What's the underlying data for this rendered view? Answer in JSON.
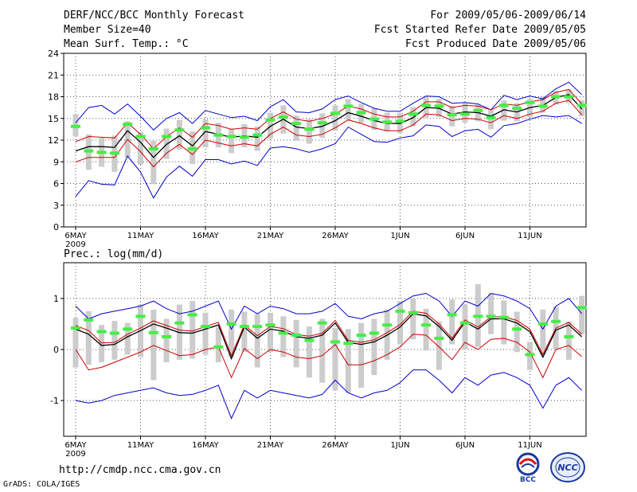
{
  "header": {
    "title": "DERF/NCC/BCC Monthly Forecast",
    "member_size": "Member Size=40",
    "variable": "Mean Surf. Temp.: °C",
    "period": "For 2009/05/06-2009/06/14",
    "refer_date": "Fcst Started Refer Date 2009/05/05",
    "produced_date": "Fcst Produced Date 2009/05/06"
  },
  "footer": {
    "url": "http://cmdp.ncc.cma.gov.cn",
    "grads": "GrADS: COLA/IGES",
    "logo_bcc_text": "BCC",
    "logo_ncc_text": "NCC"
  },
  "colors": {
    "mean": "#000000",
    "inner": "#cc0000",
    "outer": "#0000cc",
    "obs": "#44ee44",
    "box": "#cccccc",
    "grid": "#555555"
  },
  "chart_data": [
    {
      "type": "line",
      "title": "Mean Surf. Temp.: °C",
      "x_ticks": [
        "6MAY",
        "11MAY",
        "16MAY",
        "21MAY",
        "26MAY",
        "1JUN",
        "6JUN",
        "11JUN"
      ],
      "x_year": "2009",
      "ylim": [
        0,
        24
      ],
      "y_ticks": [
        0,
        3,
        6,
        9,
        12,
        15,
        18,
        21,
        24
      ],
      "days": 40,
      "series": [
        {
          "name": "ensemble-mean",
          "values": [
            10.5,
            11.1,
            11.1,
            11.0,
            13.3,
            11.7,
            9.6,
            11.4,
            12.6,
            11.2,
            13.2,
            12.8,
            12.4,
            12.6,
            12.4,
            13.9,
            14.9,
            13.8,
            13.6,
            13.9,
            14.7,
            15.8,
            15.3,
            14.7,
            14.3,
            14.3,
            15.1,
            16.5,
            16.4,
            15.6,
            15.9,
            15.8,
            15.3,
            16.2,
            15.9,
            16.5,
            16.8,
            17.9,
            18.3,
            16.3
          ]
        },
        {
          "name": "upper-inner",
          "values": [
            11.8,
            12.5,
            12.4,
            12.3,
            14.4,
            12.8,
            10.8,
            12.5,
            13.7,
            12.4,
            14.3,
            14.0,
            13.5,
            13.7,
            13.5,
            15.0,
            15.9,
            14.9,
            14.6,
            15.0,
            15.6,
            16.7,
            16.3,
            15.6,
            15.2,
            15.2,
            16.0,
            17.3,
            17.3,
            16.5,
            16.8,
            16.7,
            16.2,
            17.0,
            16.8,
            17.3,
            17.6,
            18.6,
            19.0,
            17.0
          ]
        },
        {
          "name": "lower-inner",
          "values": [
            9.0,
            9.6,
            9.6,
            9.6,
            12.1,
            10.4,
            8.3,
            10.2,
            11.4,
            10.0,
            12.0,
            11.6,
            11.2,
            11.5,
            11.2,
            12.8,
            13.8,
            12.7,
            12.5,
            12.8,
            13.7,
            14.8,
            14.3,
            13.7,
            13.3,
            13.3,
            14.1,
            15.6,
            15.5,
            14.7,
            15.0,
            14.9,
            14.4,
            15.4,
            15.0,
            15.6,
            16.0,
            17.1,
            17.5,
            15.5
          ]
        },
        {
          "name": "upper-outer",
          "values": [
            14.4,
            16.5,
            16.8,
            15.6,
            17.0,
            15.3,
            13.4,
            15.0,
            15.8,
            14.3,
            16.1,
            15.6,
            15.1,
            15.3,
            14.7,
            16.6,
            17.6,
            15.9,
            15.8,
            16.3,
            17.6,
            18.1,
            17.2,
            16.4,
            16.0,
            16.0,
            17.1,
            18.1,
            18.0,
            17.1,
            17.2,
            17.0,
            16.2,
            18.2,
            17.6,
            18.1,
            17.7,
            19.1,
            20.0,
            18.3
          ]
        },
        {
          "name": "lower-outer",
          "values": [
            4.2,
            6.4,
            5.9,
            5.8,
            9.8,
            7.6,
            4.0,
            6.9,
            8.4,
            7.0,
            9.3,
            9.3,
            8.7,
            9.1,
            8.5,
            10.9,
            11.1,
            10.8,
            10.3,
            10.8,
            11.5,
            13.8,
            12.8,
            11.8,
            11.7,
            12.3,
            12.6,
            14.1,
            13.9,
            12.5,
            13.3,
            13.5,
            12.4,
            14.0,
            14.3,
            14.9,
            15.4,
            15.2,
            15.4,
            14.3
          ]
        },
        {
          "name": "obs-marker",
          "values": [
            13.9,
            10.5,
            10.3,
            10.2,
            14.2,
            12.5,
            10.8,
            12.5,
            13.4,
            10.8,
            13.7,
            12.7,
            12.5,
            12.4,
            12.7,
            14.8,
            15.2,
            14.3,
            13.5,
            14.4,
            15.7,
            16.7,
            15.8,
            14.9,
            14.5,
            14.6,
            15.6,
            16.8,
            16.7,
            15.5,
            15.6,
            16.1,
            15.1,
            16.8,
            16.4,
            17.2,
            16.7,
            18.0,
            18.0,
            16.8
          ]
        },
        {
          "name": "box-top",
          "values": [
            15.6,
            12.8,
            12.3,
            12.6,
            14.6,
            13.1,
            11.9,
            13.6,
            14.8,
            13.2,
            14.9,
            14.4,
            13.6,
            14.2,
            13.9,
            15.8,
            16.8,
            15.4,
            14.9,
            15.7,
            16.8,
            17.7,
            17.0,
            16.4,
            15.8,
            15.8,
            16.6,
            18.0,
            17.7,
            16.7,
            17.1,
            16.9,
            16.2,
            17.5,
            17.1,
            17.7,
            18.1,
            18.8,
            19.0,
            17.5
          ]
        },
        {
          "name": "box-bottom",
          "values": [
            12.5,
            7.9,
            8.3,
            7.6,
            9.6,
            8.6,
            5.9,
            9.4,
            10.7,
            8.7,
            11.0,
            11.0,
            10.2,
            11.0,
            10.5,
            12.2,
            12.9,
            11.9,
            11.5,
            12.3,
            13.3,
            14.8,
            14.4,
            13.4,
            13.2,
            13.0,
            13.9,
            15.1,
            15.2,
            13.9,
            14.4,
            14.6,
            13.5,
            14.7,
            14.6,
            15.2,
            15.8,
            16.9,
            17.1,
            15.3
          ]
        }
      ]
    },
    {
      "type": "line",
      "title": "Prec.: log(mm/d)",
      "x_ticks": [
        "6MAY",
        "11MAY",
        "16MAY",
        "21MAY",
        "26MAY",
        "1JUN",
        "6JUN",
        "11JUN"
      ],
      "x_year": "2009",
      "ylim": [
        -1.7,
        1.7
      ],
      "y_ticks": [
        -1,
        0,
        1
      ],
      "days": 40,
      "series": [
        {
          "name": "ensemble-mean",
          "values": [
            0.4,
            0.3,
            0.08,
            0.1,
            0.25,
            0.37,
            0.5,
            0.42,
            0.33,
            0.32,
            0.4,
            0.48,
            -0.18,
            0.44,
            0.22,
            0.4,
            0.36,
            0.25,
            0.22,
            0.28,
            0.52,
            0.14,
            0.1,
            0.15,
            0.28,
            0.44,
            0.7,
            0.66,
            0.45,
            0.18,
            0.54,
            0.4,
            0.6,
            0.6,
            0.52,
            0.35,
            -0.15,
            0.38,
            0.48,
            0.25
          ]
        },
        {
          "name": "upper-inner",
          "values": [
            0.47,
            0.37,
            0.13,
            0.14,
            0.3,
            0.42,
            0.56,
            0.47,
            0.38,
            0.36,
            0.45,
            0.53,
            -0.12,
            0.48,
            0.27,
            0.45,
            0.41,
            0.29,
            0.26,
            0.32,
            0.57,
            0.18,
            0.14,
            0.19,
            0.33,
            0.49,
            0.75,
            0.71,
            0.5,
            0.22,
            0.58,
            0.44,
            0.64,
            0.64,
            0.57,
            0.4,
            -0.1,
            0.42,
            0.53,
            0.3
          ]
        },
        {
          "name": "lower-inner",
          "values": [
            0.0,
            -0.4,
            -0.35,
            -0.25,
            -0.15,
            -0.05,
            0.08,
            -0.02,
            -0.12,
            -0.1,
            0.0,
            0.05,
            -0.55,
            0.02,
            -0.18,
            0.0,
            -0.05,
            -0.15,
            -0.18,
            -0.12,
            0.1,
            -0.3,
            -0.3,
            -0.22,
            -0.1,
            0.05,
            0.3,
            0.28,
            0.05,
            -0.2,
            0.14,
            0.0,
            0.2,
            0.22,
            0.14,
            -0.05,
            -0.55,
            0.0,
            0.08,
            -0.14
          ]
        },
        {
          "name": "upper-outer",
          "values": [
            0.85,
            0.6,
            0.7,
            0.75,
            0.8,
            0.85,
            0.95,
            0.8,
            0.7,
            0.75,
            0.85,
            0.95,
            0.4,
            0.85,
            0.7,
            0.85,
            0.8,
            0.7,
            0.7,
            0.75,
            0.9,
            0.65,
            0.6,
            0.7,
            0.75,
            0.9,
            1.05,
            1.1,
            0.95,
            0.65,
            0.95,
            0.85,
            1.1,
            1.05,
            0.95,
            0.8,
            0.4,
            0.85,
            1.0,
            0.7
          ]
        },
        {
          "name": "lower-outer",
          "values": [
            -1.0,
            -1.05,
            -1.0,
            -0.9,
            -0.85,
            -0.8,
            -0.75,
            -0.85,
            -0.9,
            -0.88,
            -0.8,
            -0.7,
            -1.35,
            -0.8,
            -0.95,
            -0.8,
            -0.85,
            -0.9,
            -0.95,
            -0.88,
            -0.6,
            -0.85,
            -0.95,
            -0.85,
            -0.8,
            -0.65,
            -0.4,
            -0.4,
            -0.6,
            -0.85,
            -0.55,
            -0.7,
            -0.5,
            -0.45,
            -0.55,
            -0.7,
            -1.15,
            -0.7,
            -0.55,
            -0.8
          ]
        },
        {
          "name": "obs-marker",
          "values": [
            0.42,
            0.58,
            0.35,
            0.32,
            0.4,
            0.65,
            0.33,
            0.25,
            0.52,
            0.68,
            0.45,
            0.05,
            0.5,
            0.45,
            0.45,
            0.48,
            0.32,
            0.28,
            0.18,
            0.52,
            0.15,
            0.12,
            0.28,
            0.32,
            0.48,
            0.75,
            0.72,
            0.48,
            0.22,
            0.68,
            0.52,
            0.65,
            0.65,
            0.63,
            0.4,
            -0.1,
            0.5,
            0.55,
            0.25,
            0.82
          ]
        },
        {
          "name": "box-top",
          "values": [
            0.62,
            0.75,
            0.48,
            0.56,
            0.52,
            0.88,
            0.78,
            0.6,
            0.88,
            0.95,
            0.72,
            0.44,
            0.78,
            0.74,
            0.7,
            0.72,
            0.65,
            0.58,
            0.45,
            0.6,
            0.42,
            0.4,
            0.52,
            0.6,
            0.78,
            0.95,
            1.0,
            0.8,
            0.55,
            0.98,
            0.88,
            1.28,
            1.1,
            0.96,
            0.74,
            0.15,
            0.78,
            0.84,
            0.55,
            1.05
          ]
        },
        {
          "name": "box-bottom",
          "values": [
            -0.35,
            -0.3,
            -0.25,
            -0.2,
            -0.1,
            -0.15,
            -0.6,
            -0.25,
            -0.2,
            -0.18,
            -0.1,
            -0.25,
            -0.15,
            -0.05,
            -0.35,
            -0.05,
            -0.15,
            -0.35,
            -0.55,
            -0.65,
            -0.8,
            -0.85,
            -0.75,
            -0.5,
            -0.2,
            0.1,
            0.2,
            -0.02,
            -0.4,
            0.1,
            0.0,
            0.05,
            0.3,
            0.1,
            -0.05,
            -0.4,
            -0.1,
            0.0,
            -0.2,
            0.3
          ]
        }
      ]
    }
  ]
}
